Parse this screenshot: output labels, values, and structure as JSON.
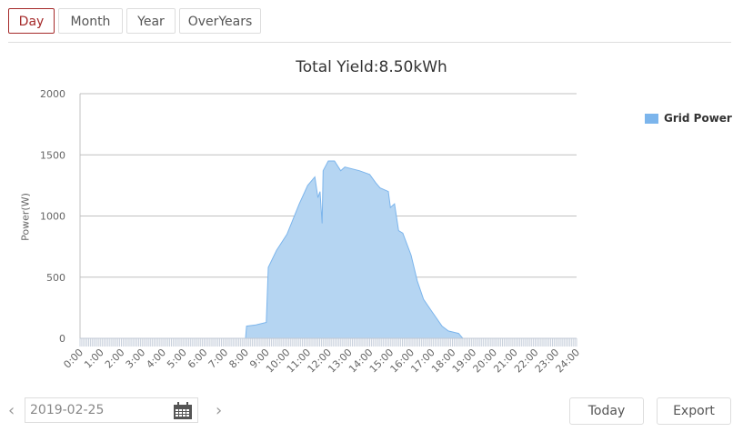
{
  "tabs": [
    {
      "label": "Day",
      "active": true
    },
    {
      "label": "Month",
      "active": false
    },
    {
      "label": "Year",
      "active": false
    },
    {
      "label": "OverYears",
      "active": false
    }
  ],
  "chart": {
    "title": "Total Yield:8.50kWh",
    "ylabel": "Power(W)",
    "legend": "Grid Power"
  },
  "footer": {
    "date_value": "2019-02-25",
    "prev_icon": "chevron-left-icon",
    "next_icon": "chevron-right-icon",
    "calendar_icon": "calendar-icon",
    "today_label": "Today",
    "export_label": "Export"
  },
  "colors": {
    "accent": "#a52a2a",
    "series_fill": "#b5d5f2",
    "series_line": "#7cb5ec",
    "grid": "#c0c0c0"
  },
  "chart_data": {
    "type": "area",
    "title": "Total Yield:8.50kWh",
    "xlabel": "",
    "ylabel": "Power(W)",
    "ylim": [
      0,
      2000
    ],
    "yticks": [
      0,
      500,
      1000,
      1500,
      2000
    ],
    "xticks": [
      "0:00",
      "1:00",
      "2:00",
      "3:00",
      "4:00",
      "5:00",
      "6:00",
      "7:00",
      "8:00",
      "9:00",
      "10:00",
      "11:00",
      "12:00",
      "13:00",
      "14:00",
      "15:00",
      "16:00",
      "17:00",
      "18:00",
      "19:00",
      "20:00",
      "21:00",
      "22:00",
      "23:00",
      "24:00"
    ],
    "grid": true,
    "legend_position": "right-top",
    "series": [
      {
        "name": "Grid Power",
        "x_hours": [
          0,
          8.0,
          8.05,
          8.5,
          9.0,
          9.1,
          9.5,
          10.0,
          10.6,
          11.0,
          11.35,
          11.5,
          11.6,
          11.7,
          11.75,
          12.0,
          12.3,
          12.6,
          12.8,
          13.5,
          14.0,
          14.3,
          14.5,
          14.9,
          15.0,
          15.2,
          15.4,
          15.6,
          16.0,
          16.3,
          16.6,
          17.0,
          17.5,
          17.8,
          18.3,
          18.5,
          24
        ],
        "values": [
          0,
          0,
          100,
          110,
          130,
          580,
          720,
          850,
          1100,
          1250,
          1320,
          1150,
          1200,
          940,
          1370,
          1450,
          1450,
          1370,
          1400,
          1370,
          1340,
          1270,
          1230,
          1200,
          1070,
          1100,
          880,
          860,
          680,
          470,
          320,
          220,
          100,
          60,
          40,
          0,
          0
        ]
      }
    ]
  }
}
